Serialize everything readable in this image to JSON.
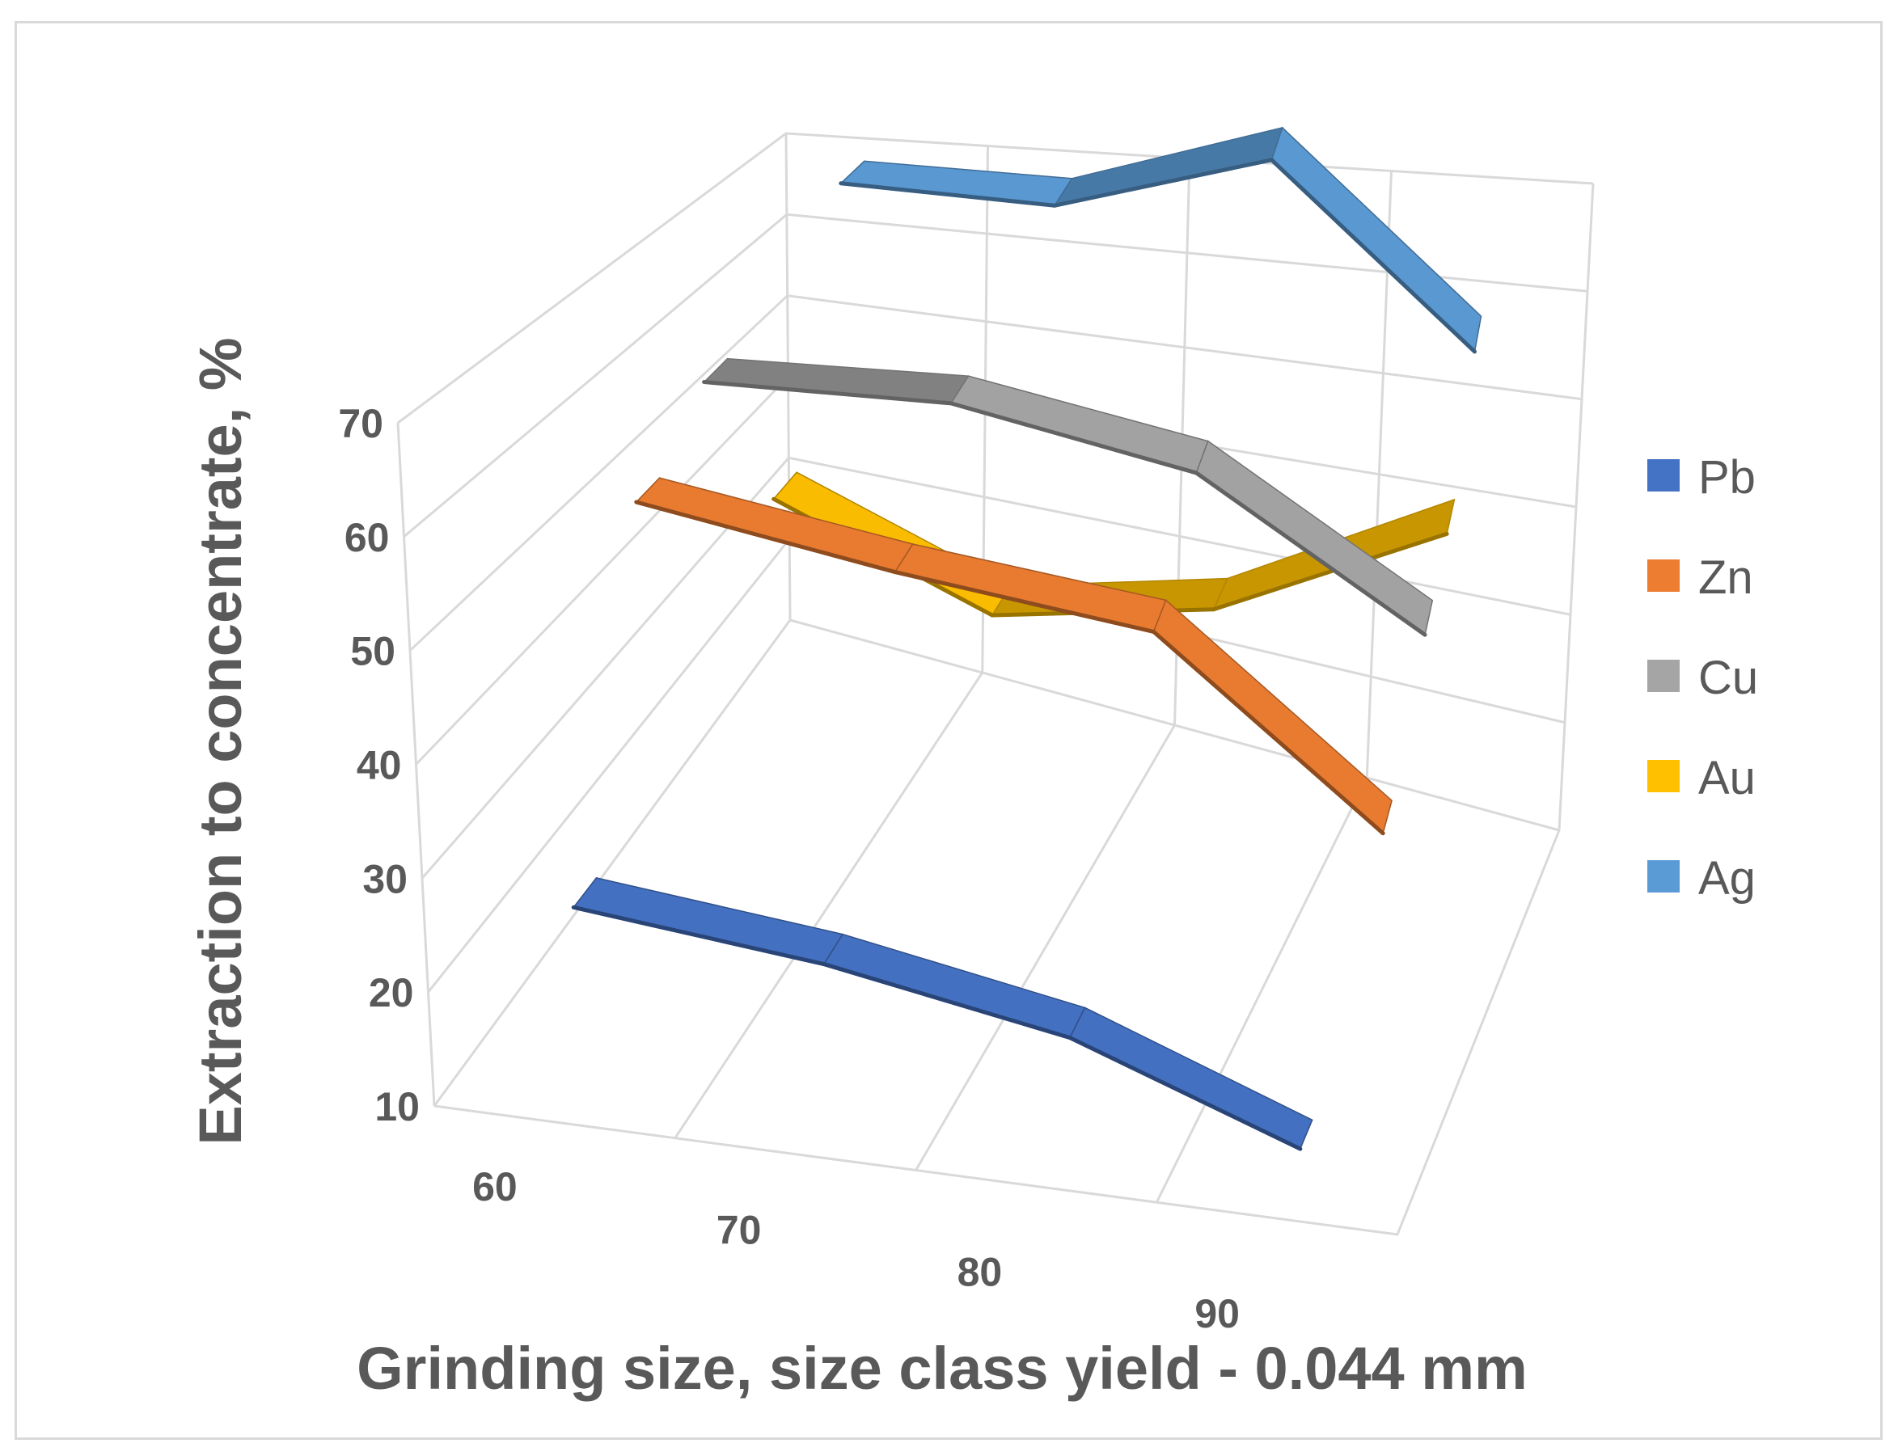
{
  "chart_data": {
    "type": "line3d",
    "title": "",
    "xlabel": "Grinding size, size class yield - 0.044 mm",
    "ylabel": "Extraction to concentrate, %",
    "categories": [
      "60",
      "70",
      "80",
      "90"
    ],
    "ylim": [
      10,
      70
    ],
    "yticks": [
      "10",
      "20",
      "30",
      "40",
      "50",
      "60",
      "70"
    ],
    "grid": true,
    "legend_position": "right",
    "series": [
      {
        "name": "Pb",
        "color": "#4472c4",
        "values": [
          27,
          26,
          23,
          15
        ]
      },
      {
        "name": "Zn",
        "color": "#ed7d31",
        "values": [
          58,
          57,
          57,
          41
        ]
      },
      {
        "name": "Cu",
        "color": "#a5a5a5",
        "values": [
          63,
          66,
          64,
          52
        ]
      },
      {
        "name": "Au",
        "color": "#ffc000",
        "values": [
          43,
          35,
          40,
          52
        ]
      },
      {
        "name": "Ag",
        "color": "#5b9bd5",
        "values": [
          70,
          70,
          77,
          60
        ]
      }
    ]
  }
}
